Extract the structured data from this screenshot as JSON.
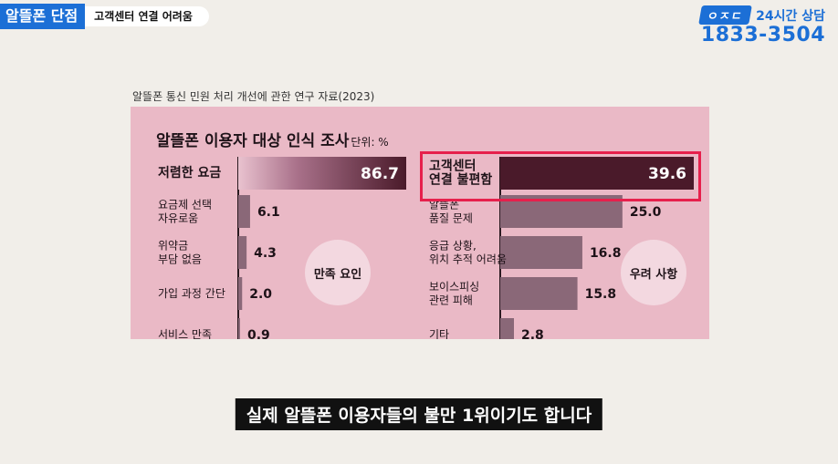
{
  "header": {
    "title": "알뜰폰 단점",
    "subtitle": "고객센터 연결 어려움"
  },
  "brand": {
    "badge": "ㅇㅈㄷ",
    "hours": "24시간 상담",
    "phone": "1833-3504"
  },
  "source_caption": "알뜰폰 통신 민원 처리 개선에 관한 연구 자료(2023)",
  "caption": "실제 알뜰폰 이용자들의 불만 1위이기도 합니다",
  "chart_data": {
    "type": "bar",
    "title": "알뜰폰 이용자 대상 인식 조사",
    "unit": "단위: %",
    "groups": [
      {
        "name": "만족 요인",
        "categories": [
          "저렴한 요금",
          "요금제 선택 자유로움",
          "위약금 부담 없음",
          "가입 과정 간단",
          "서비스 만족"
        ],
        "values": [
          86.7,
          6.1,
          4.3,
          2.0,
          0.9
        ],
        "labels": [
          "86.7",
          "6.1",
          "4.3",
          "2.0",
          "0.9"
        ]
      },
      {
        "name": "우려 사항",
        "categories": [
          "고객센터 연결 불편함",
          "알뜰폰 품질 문제",
          "응급 상황, 위치 추적 어려움",
          "보이스피싱 관련 피해",
          "기타"
        ],
        "values": [
          39.6,
          25.0,
          16.8,
          15.8,
          2.8
        ],
        "labels": [
          "39.6",
          "25.0",
          "16.8",
          "15.8",
          "2.8"
        ]
      }
    ],
    "highlight": "고객센터 연결 불편함",
    "colors": {
      "top_bar": "#4a1a2a",
      "bar": "#8a6878",
      "panel": "#eab9c6",
      "highlight": "#e6204c"
    }
  }
}
